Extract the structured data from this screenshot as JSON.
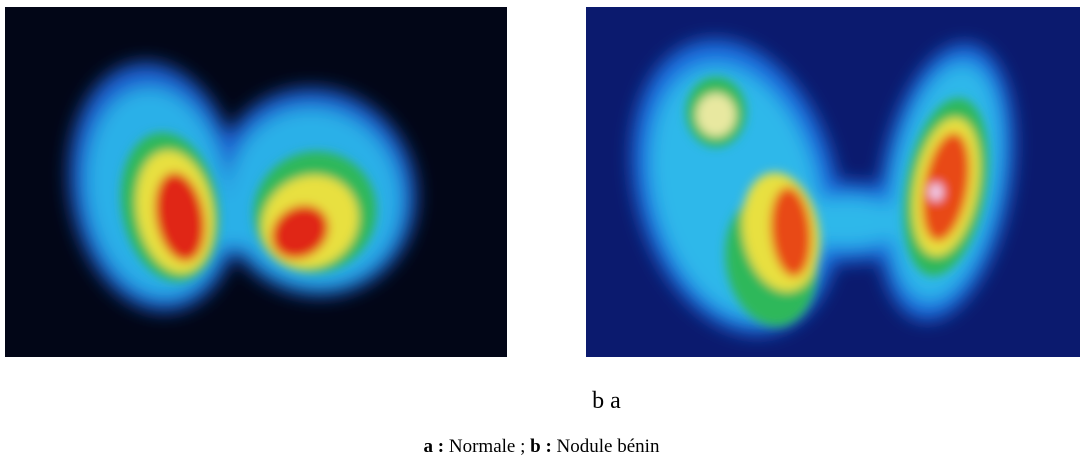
{
  "figure": {
    "panel_labels": "b a",
    "caption": {
      "a_key": "a :",
      "a_text": "Normale ;",
      "b_key": "b :",
      "b_text": "Nodule bénin"
    }
  }
}
